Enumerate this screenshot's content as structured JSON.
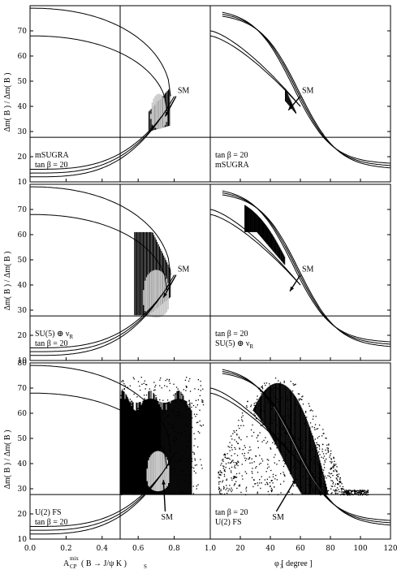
{
  "chart_data": {
    "type": "scatter",
    "grid": false,
    "shared_axes": {
      "left_x": {
        "range": [
          0.0,
          1.0
        ],
        "ticks": [
          "0.0",
          "0.2",
          "0.4",
          "0.6",
          "0.8",
          "1.0"
        ]
      },
      "right_x": {
        "range": [
          0,
          120
        ],
        "ticks": [
          "0",
          "20",
          "40",
          "60",
          "80",
          "100",
          "120"
        ]
      },
      "y": {
        "range": [
          10,
          80
        ],
        "ticks": [
          "10",
          "20",
          "30",
          "40",
          "50",
          "60",
          "70",
          "80"
        ]
      }
    },
    "axis_labels": {
      "ylabel": "Δm( B ) / Δm( B )",
      "ylabel_sub_s": "s",
      "ylabel_sub_d": "d",
      "xlabel_left": "A",
      "xlabel_left_sup": "mix",
      "xlabel_left_sub": "CP",
      "xlabel_left_arg": "( B → J/ψ K )",
      "xlabel_left_arg_sub": "S",
      "xlabel_right": "φ  [ degree ]",
      "xlabel_right_sub": "3"
    },
    "reference_lines": {
      "horizontal_y": 27.7,
      "vertical_x_left": 0.5
    },
    "sm_label": "SM",
    "panels": [
      {
        "row": 1,
        "side": "left",
        "labels": [
          "mSUGRA",
          "tan β = 20"
        ]
      },
      {
        "row": 1,
        "side": "right",
        "labels": [
          "tan β = 20",
          "mSUGRA"
        ]
      },
      {
        "row": 2,
        "side": "left",
        "labels": [
          "SU(5) ⊕ ν",
          "tan β = 20"
        ],
        "label_sub": "R"
      },
      {
        "row": 2,
        "side": "right",
        "labels": [
          "tan β = 20",
          "SU(5) ⊕ ν"
        ],
        "label_sub": "R"
      },
      {
        "row": 3,
        "side": "left",
        "labels": [
          "U(2) FS",
          "tan β = 20"
        ]
      },
      {
        "row": 3,
        "side": "right",
        "labels": [
          "tan β = 20",
          "U(2) FS"
        ]
      }
    ],
    "sm_arrows": [
      {
        "row": 1,
        "side": "left",
        "from": [
          0.81,
          44.0
        ],
        "to": [
          0.75,
          36.0
        ]
      },
      {
        "row": 1,
        "side": "right",
        "from": [
          60.0,
          44.0
        ],
        "to": [
          52.0,
          38.5
        ]
      },
      {
        "row": 2,
        "side": "left",
        "from": [
          0.81,
          44.0
        ],
        "to": [
          0.74,
          35.0
        ]
      },
      {
        "row": 2,
        "side": "right",
        "from": [
          60.0,
          44.0
        ],
        "to": [
          53.0,
          37.5
        ]
      },
      {
        "row": 3,
        "side": "left",
        "from": [
          0.75,
          21.0
        ],
        "to": [
          0.74,
          33.5
        ]
      },
      {
        "row": 3,
        "side": "right",
        "from": [
          44.0,
          21.0
        ],
        "to": [
          57.0,
          34.0
        ]
      }
    ],
    "regions": {
      "row1_left": {
        "x_range": [
          0.66,
          0.78
        ],
        "y_range": [
          27.7,
          48.0
        ]
      },
      "row2_left": {
        "x_range": [
          0.58,
          0.78
        ],
        "y_range": [
          27.7,
          61.0
        ]
      },
      "row3_left": {
        "x_range": [
          0.5,
          0.96
        ],
        "y_range": [
          27.7,
          70.0
        ]
      },
      "row1_right": {
        "x_range": [
          50,
          57
        ],
        "y_range": [
          37.0,
          47.0
        ]
      },
      "row2_right": {
        "x_range": [
          23,
          48
        ],
        "y_range": [
          42.0,
          61.0
        ]
      },
      "row3_right": {
        "x_range": [
          5,
          100
        ],
        "y_range": [
          27.7,
          75.0
        ]
      }
    }
  }
}
